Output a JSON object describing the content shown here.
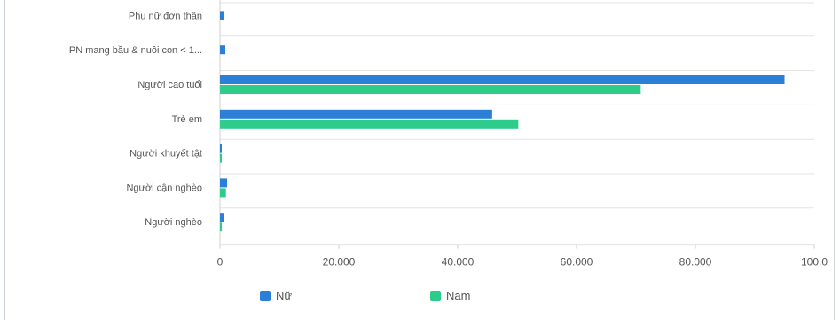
{
  "chart_data": {
    "type": "bar",
    "orientation": "horizontal",
    "categories": [
      "Phụ nữ đơn thân",
      "PN mang bầu & nuôi con < 1...",
      "Người cao tuổi",
      "Trẻ em",
      "Người khuyết tật",
      "Người cận nghèo",
      "Người nghèo"
    ],
    "series": [
      {
        "name": "Nữ",
        "color": "#2b7fd6",
        "values": [
          600,
          900,
          95000,
          45800,
          200,
          1200,
          600
        ]
      },
      {
        "name": "Nam",
        "color": "#2ecc8a",
        "values": [
          null,
          null,
          70800,
          50200,
          200,
          1000,
          300
        ]
      }
    ],
    "xlim": [
      0,
      100000
    ],
    "x_ticks": [
      "0",
      "20.000",
      "40.000",
      "60.000",
      "80.000",
      "100.0"
    ],
    "grid": true,
    "legend_position": "bottom-left"
  }
}
